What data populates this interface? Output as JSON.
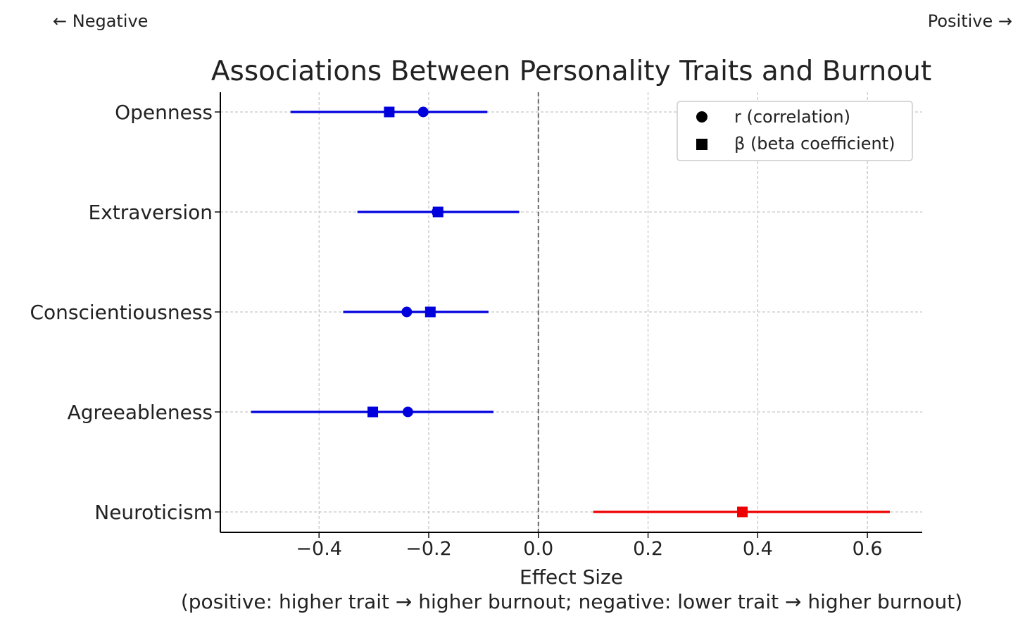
{
  "annotations": {
    "left": "← Negative",
    "right": "Positive →"
  },
  "chart_data": {
    "type": "scatter",
    "title": "Associations Between Personality Traits and Burnout",
    "xlabel": "Effect Size",
    "xlabel_sub": "(positive: higher trait → higher burnout; negative: lower trait → higher burnout)",
    "ylabel": "",
    "xlim": [
      -0.58,
      0.7
    ],
    "xticks": [
      -0.4,
      -0.2,
      0.0,
      0.2,
      0.4,
      0.6
    ],
    "xtick_labels": [
      "−0.4",
      "−0.2",
      "0.0",
      "0.2",
      "0.4",
      "0.6"
    ],
    "grid": true,
    "reference_line_x": 0.0,
    "legend_position": "top-right",
    "categories": [
      "Openness",
      "Extraversion",
      "Conscientiousness",
      "Agreeableness",
      "Neuroticism"
    ],
    "series": [
      {
        "name": "r (correlation)",
        "marker": "circle",
        "values": [
          -0.21,
          -0.185,
          -0.24,
          -0.238,
          0.372
        ]
      },
      {
        "name": "β (beta coefficient)",
        "marker": "square",
        "values": [
          -0.272,
          -0.183,
          -0.197,
          -0.302,
          0.372
        ]
      }
    ],
    "intervals": [
      {
        "category": "Openness",
        "low": -0.452,
        "high": -0.093,
        "color": "#0000dd"
      },
      {
        "category": "Extraversion",
        "low": -0.33,
        "high": -0.035,
        "color": "#0000dd"
      },
      {
        "category": "Conscientiousness",
        "low": -0.356,
        "high": -0.091,
        "color": "#0000dd"
      },
      {
        "category": "Agreeableness",
        "low": -0.524,
        "high": -0.082,
        "color": "#0000dd"
      },
      {
        "category": "Neuroticism",
        "low": 0.1,
        "high": 0.641,
        "color": "#ee0000"
      }
    ],
    "colors": {
      "negative": "#0000dd",
      "positive": "#ee0000",
      "legend_marker": "#000000"
    }
  }
}
